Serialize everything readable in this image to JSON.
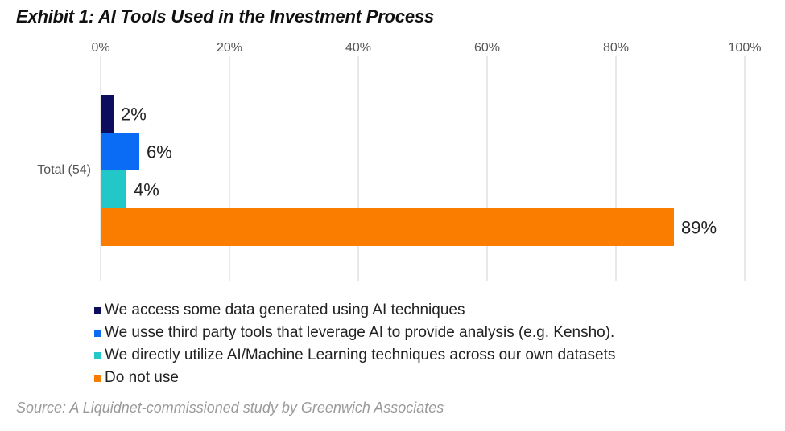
{
  "title": "Exhibit 1: AI Tools Used in the Investment Process",
  "source": "Source: A Liquidnet-commissioned study by Greenwich Associates",
  "chart_data": {
    "type": "bar",
    "orientation": "horizontal",
    "categories": [
      "Total (54)"
    ],
    "series": [
      {
        "name": "We access some data generated using AI techniques",
        "values": [
          2
        ],
        "label": "2%",
        "color": "#0d0d5e"
      },
      {
        "name": "We usse third party tools that leverage AI to provide analysis (e.g. Kensho).",
        "values": [
          6
        ],
        "label": "6%",
        "color": "#0a6cf5"
      },
      {
        "name": "We directly utilize AI/Machine Learning techniques across our own datasets",
        "values": [
          4
        ],
        "label": "4%",
        "color": "#22c8c8"
      },
      {
        "name": "Do not use",
        "values": [
          89
        ],
        "label": "89%",
        "color": "#fa7d00"
      }
    ],
    "xlim": [
      0,
      100
    ],
    "xticks": [
      "0%",
      "20%",
      "40%",
      "60%",
      "80%",
      "100%"
    ],
    "axis_position": "top",
    "grid": true,
    "legend_position": "bottom-left"
  }
}
